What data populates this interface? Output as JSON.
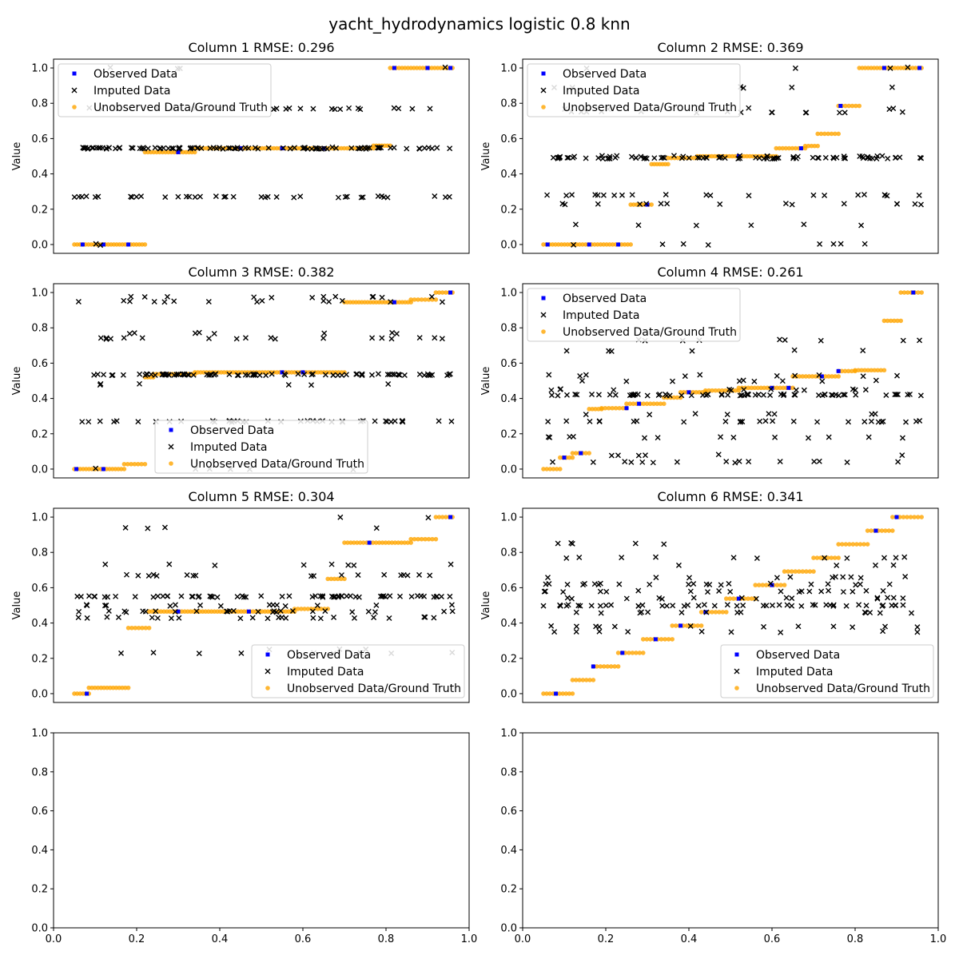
{
  "title": "yacht_hydrodynamics logistic 0.8 knn",
  "legend_labels": {
    "observed": "Observed Data",
    "imputed": "Imputed Data",
    "unobserved": "Unobserved Data/Ground Truth"
  },
  "colors": {
    "observed": "#0000ff",
    "imputed": "#000000",
    "unobserved": "#ffa500"
  },
  "chart_data": [
    {
      "type": "scatter",
      "title": "Column 1 RMSE: 0.296",
      "ylabel": "Value",
      "xlim": [
        0,
        1
      ],
      "ylim": [
        -0.05,
        1.05
      ],
      "yticks": [
        "0.0",
        "0.2",
        "0.4",
        "0.6",
        "0.8",
        "1.0"
      ],
      "show_xticks": false,
      "legend_position": "upper left",
      "segments": [
        {
          "x": [
            0.05,
            0.22
          ],
          "y": 0.0,
          "n": 26,
          "obs": [
            0.07,
            0.12,
            0.18
          ]
        },
        {
          "x": [
            0.22,
            0.34
          ],
          "y": 0.523,
          "n": 18,
          "obs": [
            0.3
          ]
        },
        {
          "x": [
            0.34,
            0.77
          ],
          "y": 0.545,
          "n": 62,
          "obs": [
            0.45,
            0.55,
            0.65
          ]
        },
        {
          "x": [
            0.77,
            0.81
          ],
          "y": 0.56,
          "n": 7,
          "obs": []
        },
        {
          "x": [
            0.81,
            0.96
          ],
          "y": 1.0,
          "n": 22,
          "obs": [
            0.82,
            0.9,
            0.955
          ]
        }
      ],
      "imputed_levels": [
        0.0,
        0.27,
        0.545,
        0.55,
        0.77,
        1.0
      ],
      "imputed_weights": [
        0.02,
        0.28,
        0.45,
        0.05,
        0.18,
        0.02
      ],
      "imputed_n": 170,
      "seed": 11
    },
    {
      "type": "scatter",
      "title": "Column 2 RMSE: 0.369",
      "ylabel": "Value",
      "xlim": [
        0,
        1
      ],
      "ylim": [
        -0.05,
        1.05
      ],
      "yticks": [
        "0.0",
        "0.2",
        "0.4",
        "0.6",
        "0.8",
        "1.0"
      ],
      "show_xticks": false,
      "legend_position": "upper left",
      "segments": [
        {
          "x": [
            0.05,
            0.26
          ],
          "y": 0.0,
          "n": 30,
          "obs": [
            0.06,
            0.16,
            0.23
          ]
        },
        {
          "x": [
            0.26,
            0.31
          ],
          "y": 0.226,
          "n": 8,
          "obs": [
            0.3
          ]
        },
        {
          "x": [
            0.31,
            0.35
          ],
          "y": 0.455,
          "n": 7,
          "obs": []
        },
        {
          "x": [
            0.35,
            0.42
          ],
          "y": 0.49,
          "n": 10,
          "obs": []
        },
        {
          "x": [
            0.42,
            0.61
          ],
          "y": 0.5,
          "n": 28,
          "obs": [
            0.52
          ]
        },
        {
          "x": [
            0.61,
            0.68
          ],
          "y": 0.545,
          "n": 10,
          "obs": [
            0.67
          ]
        },
        {
          "x": [
            0.68,
            0.71
          ],
          "y": 0.558,
          "n": 5,
          "obs": []
        },
        {
          "x": [
            0.71,
            0.76
          ],
          "y": 0.627,
          "n": 7,
          "obs": []
        },
        {
          "x": [
            0.76,
            0.81
          ],
          "y": 0.785,
          "n": 7,
          "obs": [
            0.765
          ]
        },
        {
          "x": [
            0.81,
            0.96
          ],
          "y": 1.0,
          "n": 22,
          "obs": [
            0.87,
            0.955
          ]
        }
      ],
      "imputed_levels": [
        0.0,
        0.11,
        0.23,
        0.28,
        0.49,
        0.5,
        0.75,
        0.77,
        0.89,
        1.0
      ],
      "imputed_weights": [
        0.04,
        0.02,
        0.04,
        0.14,
        0.45,
        0.1,
        0.07,
        0.05,
        0.06,
        0.03
      ],
      "imputed_n": 170,
      "seed": 23
    },
    {
      "type": "scatter",
      "title": "Column 3 RMSE: 0.382",
      "ylabel": "Value",
      "xlim": [
        0,
        1
      ],
      "ylim": [
        -0.05,
        1.05
      ],
      "yticks": [
        "0.0",
        "0.2",
        "0.4",
        "0.6",
        "0.8",
        "1.0"
      ],
      "show_xticks": false,
      "legend_position": "lower center",
      "segments": [
        {
          "x": [
            0.05,
            0.17
          ],
          "y": 0.0,
          "n": 18,
          "obs": [
            0.055,
            0.12
          ]
        },
        {
          "x": [
            0.17,
            0.22
          ],
          "y": 0.028,
          "n": 7,
          "obs": []
        },
        {
          "x": [
            0.22,
            0.24
          ],
          "y": 0.52,
          "n": 4,
          "obs": []
        },
        {
          "x": [
            0.24,
            0.34
          ],
          "y": 0.538,
          "n": 14,
          "obs": [
            0.27
          ]
        },
        {
          "x": [
            0.34,
            0.7
          ],
          "y": 0.548,
          "n": 52,
          "obs": [
            0.55,
            0.6
          ]
        },
        {
          "x": [
            0.7,
            0.86
          ],
          "y": 0.945,
          "n": 24,
          "obs": [
            0.82
          ]
        },
        {
          "x": [
            0.86,
            0.92
          ],
          "y": 0.96,
          "n": 8,
          "obs": []
        },
        {
          "x": [
            0.92,
            0.96
          ],
          "y": 1.0,
          "n": 6,
          "obs": [
            0.955
          ]
        }
      ],
      "imputed_levels": [
        0.0,
        0.27,
        0.48,
        0.535,
        0.74,
        0.77,
        0.95,
        0.975
      ],
      "imputed_weights": [
        0.03,
        0.22,
        0.06,
        0.38,
        0.12,
        0.06,
        0.07,
        0.06
      ],
      "imputed_n": 190,
      "seed": 37
    },
    {
      "type": "scatter",
      "title": "Column 4 RMSE: 0.261",
      "ylabel": "Value",
      "xlim": [
        0,
        1
      ],
      "ylim": [
        -0.05,
        1.05
      ],
      "yticks": [
        "0.0",
        "0.2",
        "0.4",
        "0.6",
        "0.8",
        "1.0"
      ],
      "show_xticks": false,
      "legend_position": "upper left",
      "segments": [
        {
          "x": [
            0.05,
            0.09
          ],
          "y": 0.0,
          "n": 6,
          "obs": []
        },
        {
          "x": [
            0.09,
            0.12
          ],
          "y": 0.065,
          "n": 5,
          "obs": [
            0.1
          ]
        },
        {
          "x": [
            0.12,
            0.16
          ],
          "y": 0.09,
          "n": 6,
          "obs": [
            0.14
          ]
        },
        {
          "x": [
            0.16,
            0.19
          ],
          "y": 0.34,
          "n": 5,
          "obs": []
        },
        {
          "x": [
            0.19,
            0.25
          ],
          "y": 0.345,
          "n": 8,
          "obs": [
            0.25
          ]
        },
        {
          "x": [
            0.25,
            0.34
          ],
          "y": 0.37,
          "n": 12,
          "obs": [
            0.28
          ]
        },
        {
          "x": [
            0.34,
            0.38
          ],
          "y": 0.405,
          "n": 6,
          "obs": []
        },
        {
          "x": [
            0.38,
            0.44
          ],
          "y": 0.435,
          "n": 9,
          "obs": [
            0.4
          ]
        },
        {
          "x": [
            0.44,
            0.52
          ],
          "y": 0.445,
          "n": 11,
          "obs": []
        },
        {
          "x": [
            0.52,
            0.65
          ],
          "y": 0.46,
          "n": 18,
          "obs": [
            0.6,
            0.64
          ]
        },
        {
          "x": [
            0.65,
            0.76
          ],
          "y": 0.525,
          "n": 15,
          "obs": [
            0.72
          ]
        },
        {
          "x": [
            0.76,
            0.8
          ],
          "y": 0.555,
          "n": 6,
          "obs": [
            0.76
          ]
        },
        {
          "x": [
            0.8,
            0.87
          ],
          "y": 0.56,
          "n": 10,
          "obs": []
        },
        {
          "x": [
            0.87,
            0.91
          ],
          "y": 0.84,
          "n": 6,
          "obs": []
        },
        {
          "x": [
            0.91,
            0.96
          ],
          "y": 1.0,
          "n": 7,
          "obs": [
            0.94
          ]
        }
      ],
      "imputed_levels": [
        0.04,
        0.08,
        0.18,
        0.27,
        0.31,
        0.42,
        0.45,
        0.5,
        0.53,
        0.67,
        0.73
      ],
      "imputed_weights": [
        0.1,
        0.06,
        0.05,
        0.12,
        0.04,
        0.32,
        0.12,
        0.06,
        0.05,
        0.04,
        0.04
      ],
      "imputed_n": 180,
      "seed": 41
    },
    {
      "type": "scatter",
      "title": "Column 5 RMSE: 0.304",
      "ylabel": "Value",
      "xlim": [
        0,
        1
      ],
      "ylim": [
        -0.05,
        1.05
      ],
      "yticks": [
        "0.0",
        "0.2",
        "0.4",
        "0.6",
        "0.8",
        "1.0"
      ],
      "show_xticks": false,
      "legend_position": "lower right",
      "segments": [
        {
          "x": [
            0.05,
            0.085
          ],
          "y": 0.0,
          "n": 6,
          "obs": [
            0.08
          ]
        },
        {
          "x": [
            0.085,
            0.18
          ],
          "y": 0.033,
          "n": 14,
          "obs": []
        },
        {
          "x": [
            0.18,
            0.23
          ],
          "y": 0.372,
          "n": 7,
          "obs": []
        },
        {
          "x": [
            0.23,
            0.58
          ],
          "y": 0.465,
          "n": 50,
          "obs": [
            0.3,
            0.47
          ]
        },
        {
          "x": [
            0.58,
            0.66
          ],
          "y": 0.48,
          "n": 11,
          "obs": []
        },
        {
          "x": [
            0.66,
            0.7
          ],
          "y": 0.65,
          "n": 6,
          "obs": []
        },
        {
          "x": [
            0.7,
            0.86
          ],
          "y": 0.855,
          "n": 22,
          "obs": [
            0.76
          ]
        },
        {
          "x": [
            0.86,
            0.92
          ],
          "y": 0.875,
          "n": 8,
          "obs": []
        },
        {
          "x": [
            0.92,
            0.96
          ],
          "y": 1.0,
          "n": 6,
          "obs": [
            0.955
          ]
        }
      ],
      "imputed_levels": [
        0.23,
        0.25,
        0.43,
        0.465,
        0.5,
        0.55,
        0.67,
        0.73,
        0.94,
        1.0
      ],
      "imputed_weights": [
        0.05,
        0.03,
        0.06,
        0.14,
        0.12,
        0.34,
        0.12,
        0.08,
        0.03,
        0.03
      ],
      "imputed_n": 170,
      "seed": 53
    },
    {
      "type": "scatter",
      "title": "Column 6 RMSE: 0.341",
      "ylabel": "Value",
      "xlim": [
        0,
        1
      ],
      "ylim": [
        -0.05,
        1.05
      ],
      "yticks": [
        "0.0",
        "0.2",
        "0.4",
        "0.6",
        "0.8",
        "1.0"
      ],
      "show_xticks": false,
      "legend_position": "lower right",
      "segments": [
        {
          "x": [
            0.05,
            0.12
          ],
          "y": 0.0,
          "n": 10,
          "obs": [
            0.08
          ]
        },
        {
          "x": [
            0.12,
            0.17
          ],
          "y": 0.077,
          "n": 7,
          "obs": []
        },
        {
          "x": [
            0.17,
            0.23
          ],
          "y": 0.154,
          "n": 8,
          "obs": [
            0.17
          ]
        },
        {
          "x": [
            0.23,
            0.29
          ],
          "y": 0.231,
          "n": 8,
          "obs": [
            0.24
          ]
        },
        {
          "x": [
            0.29,
            0.36
          ],
          "y": 0.308,
          "n": 9,
          "obs": [
            0.32
          ]
        },
        {
          "x": [
            0.36,
            0.43
          ],
          "y": 0.385,
          "n": 9,
          "obs": [
            0.38
          ]
        },
        {
          "x": [
            0.43,
            0.49
          ],
          "y": 0.462,
          "n": 8,
          "obs": [
            0.44
          ]
        },
        {
          "x": [
            0.49,
            0.56
          ],
          "y": 0.538,
          "n": 9,
          "obs": [
            0.52
          ]
        },
        {
          "x": [
            0.56,
            0.63
          ],
          "y": 0.615,
          "n": 9,
          "obs": [
            0.6
          ]
        },
        {
          "x": [
            0.63,
            0.7
          ],
          "y": 0.692,
          "n": 9,
          "obs": []
        },
        {
          "x": [
            0.7,
            0.76
          ],
          "y": 0.769,
          "n": 8,
          "obs": []
        },
        {
          "x": [
            0.76,
            0.83
          ],
          "y": 0.846,
          "n": 9,
          "obs": []
        },
        {
          "x": [
            0.83,
            0.89
          ],
          "y": 0.923,
          "n": 8,
          "obs": [
            0.85
          ]
        },
        {
          "x": [
            0.89,
            0.96
          ],
          "y": 1.0,
          "n": 9,
          "obs": [
            0.9
          ]
        }
      ],
      "imputed_levels": [
        0.35,
        0.38,
        0.46,
        0.5,
        0.54,
        0.58,
        0.62,
        0.66,
        0.73,
        0.77,
        0.85
      ],
      "imputed_weights": [
        0.05,
        0.07,
        0.1,
        0.24,
        0.08,
        0.1,
        0.14,
        0.07,
        0.08,
        0.04,
        0.03
      ],
      "imputed_n": 170,
      "seed": 67
    },
    {
      "type": "scatter",
      "title": "",
      "ylabel": "",
      "xlim": [
        0,
        1
      ],
      "ylim": [
        0,
        1
      ],
      "yticks": [
        "0.0",
        "0.2",
        "0.4",
        "0.6",
        "0.8",
        "1.0"
      ],
      "xticks": [
        "0.0",
        "0.2",
        "0.4",
        "0.6",
        "0.8",
        "1.0"
      ],
      "show_xticks": true,
      "legend_position": "none",
      "segments": [],
      "imputed_levels": [],
      "imputed_weights": [],
      "imputed_n": 0,
      "seed": 1
    },
    {
      "type": "scatter",
      "title": "",
      "ylabel": "",
      "xlim": [
        0,
        1
      ],
      "ylim": [
        0,
        1
      ],
      "yticks": [
        "0.0",
        "0.2",
        "0.4",
        "0.6",
        "0.8",
        "1.0"
      ],
      "xticks": [
        "0.0",
        "0.2",
        "0.4",
        "0.6",
        "0.8",
        "1.0"
      ],
      "show_xticks": true,
      "legend_position": "none",
      "segments": [],
      "imputed_levels": [],
      "imputed_weights": [],
      "imputed_n": 0,
      "seed": 2
    }
  ]
}
